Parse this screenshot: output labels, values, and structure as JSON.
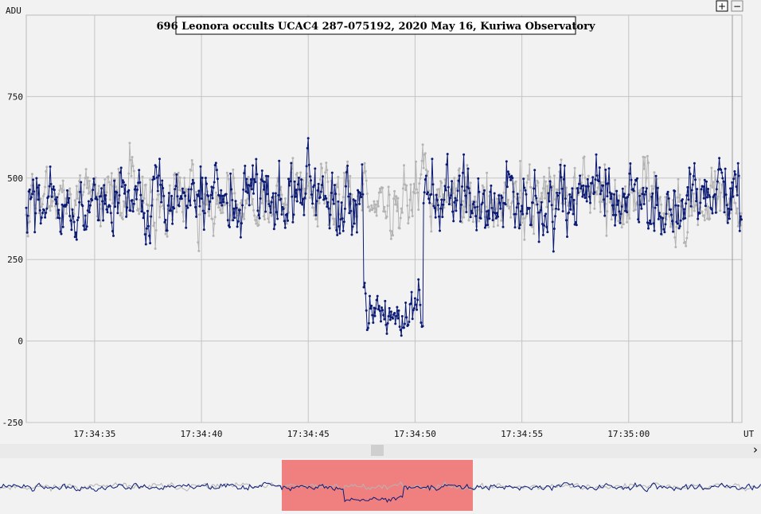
{
  "controls": {
    "zoom_in": "+",
    "zoom_out": "−",
    "scroll_right": "›"
  },
  "colors": {
    "primary_series": "#0b1a74",
    "secondary_series": "#b4b4b4",
    "grid": "#c4c4c4",
    "selection": "#f08080",
    "plot_bg": "#f2f2f2"
  },
  "chart_data": {
    "type": "line",
    "title": "696 Leonora occults UCAC4 287-075192, 2020 May 16, Kuriwa Observatory",
    "ylabel": "ADU",
    "xlabel": "UT",
    "ylim": [
      -250,
      1000
    ],
    "yticks": [
      -250,
      0,
      250,
      500,
      750
    ],
    "xlim": [
      "17:34:31.8",
      "17:35:05.3"
    ],
    "xticks": [
      "17:34:35",
      "17:34:40",
      "17:34:45",
      "17:34:50",
      "17:34:55",
      "17:35:00"
    ],
    "grid": true,
    "series": [
      {
        "role": "target",
        "color": "#0b1a74",
        "x_start": "17:34:31.8",
        "sample_spacing_s": 0.04,
        "baseline_mean": 430,
        "scatter": 85,
        "event": {
          "disappear": "17:34:47.6",
          "reappear": "17:34:50.4",
          "level_during_event": 80
        }
      },
      {
        "role": "comparison",
        "color": "#b4b4b4",
        "x_start": "17:34:31.8",
        "sample_spacing_s": 0.04,
        "baseline_mean": 440,
        "scatter": 80
      }
    ],
    "overview": {
      "window_start": "17:34:44.7",
      "window_end": "17:34:53.7"
    }
  }
}
